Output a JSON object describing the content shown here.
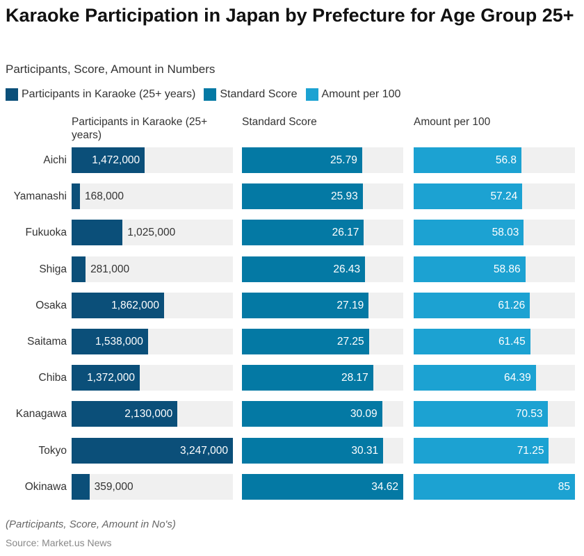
{
  "title": "Karaoke Participation in Japan by Prefecture for Age Group 25+",
  "subtitle": "Participants, Score, Amount in Numbers",
  "note": "(Participants, Score, Amount in No's)",
  "source": "Source: Market.us News",
  "chart_data": {
    "type": "bar",
    "orientation": "horizontal",
    "categories": [
      "Aichi",
      "Yamanashi",
      "Fukuoka",
      "Shiga",
      "Osaka",
      "Saitama",
      "Chiba",
      "Kanagawa",
      "Tokyo",
      "Okinawa"
    ],
    "series": [
      {
        "name": "Participants in Karaoke (25+ years)",
        "color": "#0b4f79",
        "values": [
          1472000,
          168000,
          1025000,
          281000,
          1862000,
          1538000,
          1372000,
          2130000,
          3247000,
          359000
        ],
        "labels": [
          "1,472,000",
          "168,000",
          "1,025,000",
          "281,000",
          "1,862,000",
          "1,538,000",
          "1,372,000",
          "2,130,000",
          "3,247,000",
          "359,000"
        ]
      },
      {
        "name": "Standard Score",
        "color": "#0479a4",
        "values": [
          25.79,
          25.93,
          26.17,
          26.43,
          27.19,
          27.25,
          28.17,
          30.09,
          30.31,
          34.62
        ],
        "labels": [
          "25.79",
          "25.93",
          "26.17",
          "26.43",
          "27.19",
          "27.25",
          "28.17",
          "30.09",
          "30.31",
          "34.62"
        ]
      },
      {
        "name": "Amount per 100",
        "color": "#1ca2d2",
        "values": [
          56.8,
          57.24,
          58.03,
          58.86,
          61.26,
          61.45,
          64.39,
          70.53,
          71.25,
          85
        ],
        "labels": [
          "56.8",
          "57.24",
          "58.03",
          "58.86",
          "61.26",
          "61.45",
          "64.39",
          "70.53",
          "71.25",
          "85"
        ]
      }
    ],
    "legend_position": "top-left",
    "grid": false
  }
}
